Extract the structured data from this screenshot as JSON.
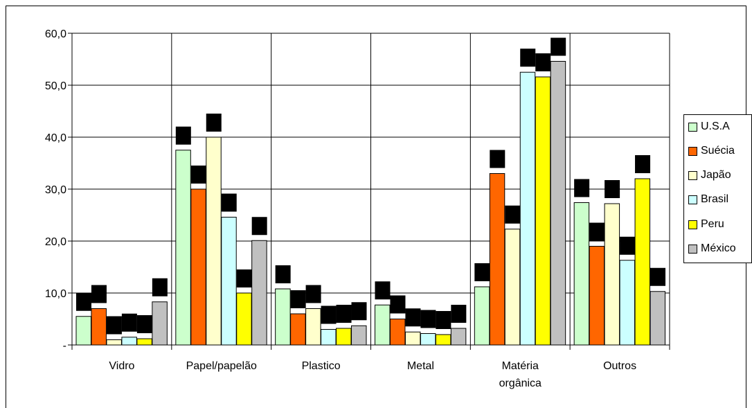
{
  "chart_data": {
    "type": "bar",
    "categories": [
      "Vidro",
      "Papel/papelão",
      "Plastico",
      "Metal",
      "Matéria orgânica",
      "Outros"
    ],
    "category_label_lines": [
      [
        "Vidro"
      ],
      [
        "Papel/papelão"
      ],
      [
        "Plastico"
      ],
      [
        "Metal"
      ],
      [
        "Matéria",
        "orgânica"
      ],
      [
        "Outros"
      ]
    ],
    "series": [
      {
        "name": "U.S.A",
        "color": "#ccffcc",
        "values": [
          5.5,
          37.5,
          10.8,
          7.7,
          11.2,
          27.4
        ]
      },
      {
        "name": "Suécia",
        "color": "#ff6600",
        "values": [
          7.0,
          30.0,
          6.0,
          5.0,
          33.0,
          19.0
        ]
      },
      {
        "name": "Japão",
        "color": "#ffffcc",
        "values": [
          1.0,
          40.0,
          7.0,
          2.5,
          22.3,
          27.2
        ]
      },
      {
        "name": "Brasil",
        "color": "#ccffff",
        "values": [
          1.5,
          24.6,
          3.0,
          2.2,
          52.5,
          16.3
        ]
      },
      {
        "name": "Peru",
        "color": "#ffff00",
        "values": [
          1.2,
          10.0,
          3.2,
          2.0,
          51.6,
          32.0
        ]
      },
      {
        "name": "México",
        "color": "#c0c0c0",
        "values": [
          8.3,
          20.1,
          3.7,
          3.2,
          54.6,
          10.3
        ]
      }
    ],
    "y_tick_labels": [
      "-",
      "10,0",
      "20,0",
      "30,0",
      "40,0",
      "50,0",
      "60,0"
    ],
    "ylim": [
      0,
      60
    ],
    "xlabel": "",
    "ylabel": "",
    "title": "",
    "grid": true,
    "legend_position": "right"
  }
}
